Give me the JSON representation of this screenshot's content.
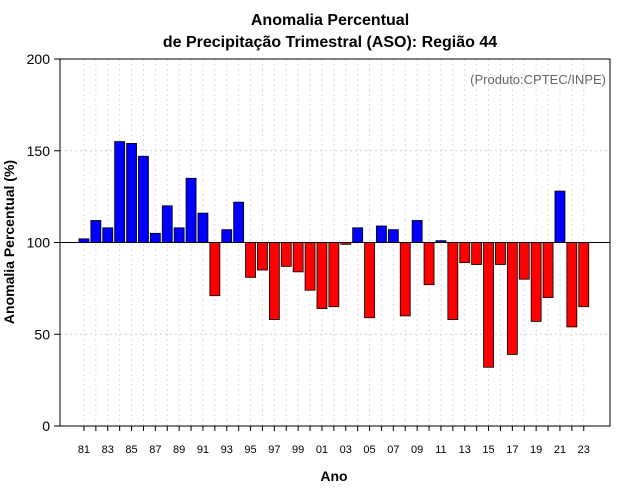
{
  "chart_data": {
    "type": "bar",
    "title_line1": "Anomalia Percentual",
    "title_line2": "de Precipitação Trimestral (ASO): Região 44",
    "credit": "(Produto:CPTEC/INPE)",
    "xlabel": "Ano",
    "ylabel": "Anomalia Percentual (%)",
    "ylim": [
      0,
      200
    ],
    "yticks": [
      0,
      50,
      100,
      150,
      200
    ],
    "ytick_labels": [
      "0",
      "50",
      "100",
      "150",
      "200"
    ],
    "baseline": 100,
    "grid": true,
    "colors": {
      "above": "#0000ff",
      "below": "#ff0000",
      "outline": "#000000"
    },
    "years": [
      1981,
      1982,
      1983,
      1984,
      1985,
      1986,
      1987,
      1988,
      1989,
      1990,
      1991,
      1992,
      1993,
      1994,
      1995,
      1996,
      1997,
      1998,
      1999,
      2000,
      2001,
      2002,
      2003,
      2004,
      2005,
      2006,
      2007,
      2008,
      2009,
      2010,
      2011,
      2012,
      2013,
      2014,
      2015,
      2016,
      2017,
      2018,
      2019,
      2020,
      2021,
      2022,
      2023
    ],
    "xtick_labels": [
      "81",
      "83",
      "85",
      "87",
      "89",
      "91",
      "93",
      "95",
      "97",
      "99",
      "01",
      "03",
      "05",
      "07",
      "09",
      "11",
      "13",
      "15",
      "17",
      "19",
      "21",
      "23"
    ],
    "values": [
      102,
      112,
      108,
      155,
      154,
      147,
      105,
      120,
      108,
      135,
      116,
      71,
      107,
      122,
      81,
      85,
      58,
      87,
      84,
      74,
      64,
      65,
      99,
      108,
      59,
      109,
      107,
      60,
      112,
      77,
      101,
      58,
      89,
      88,
      32,
      88,
      39,
      80,
      57,
      70,
      128,
      54,
      65
    ]
  }
}
